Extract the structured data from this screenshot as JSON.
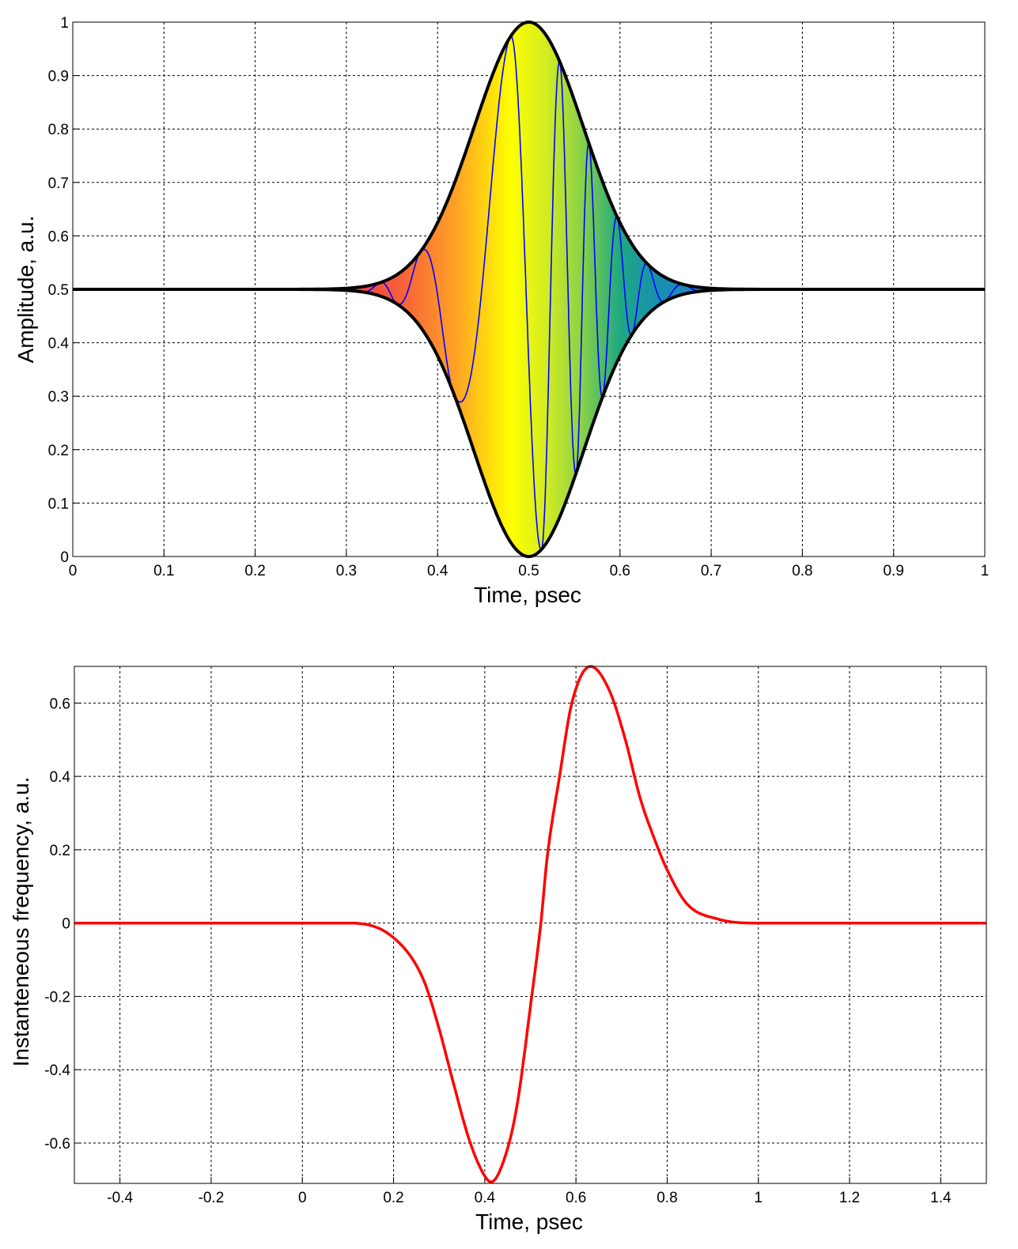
{
  "chart_data": [
    {
      "type": "area",
      "title": "",
      "xlabel": "Time, psec",
      "ylabel": "Amplitude, a.u.",
      "xlim": [
        0,
        1
      ],
      "ylim": [
        0,
        1
      ],
      "grid": true,
      "xticks": [
        "0",
        "0.1",
        "0.2",
        "0.3",
        "0.4",
        "0.5",
        "0.6",
        "0.7",
        "0.8",
        "0.9",
        "1"
      ],
      "yticks": [
        "0",
        "0.1",
        "0.2",
        "0.3",
        "0.4",
        "0.5",
        "0.6",
        "0.7",
        "0.8",
        "0.9",
        "1"
      ],
      "envelope": {
        "center": 0.5,
        "offset": 0.5,
        "amplitude": 0.5,
        "sigma": 0.06,
        "color": "#000000"
      },
      "carrier": {
        "color": "#0000ff",
        "extrema_t": [
          0.337,
          0.355,
          0.381,
          0.417,
          0.48,
          0.514,
          0.534,
          0.552,
          0.566,
          0.581,
          0.597,
          0.613,
          0.63,
          0.649,
          0.67
        ],
        "half_period_edge": 0.02
      },
      "fill_gradient": [
        {
          "t": 0.3,
          "color": "#ee3c46"
        },
        {
          "t": 0.36,
          "color": "#f5603a"
        },
        {
          "t": 0.42,
          "color": "#ffa225"
        },
        {
          "t": 0.48,
          "color": "#ffff00"
        },
        {
          "t": 0.52,
          "color": "#d2ec22"
        },
        {
          "t": 0.56,
          "color": "#86d04a"
        },
        {
          "t": 0.6,
          "color": "#1ea882"
        },
        {
          "t": 0.64,
          "color": "#1890ae"
        },
        {
          "t": 0.7,
          "color": "#2a7cc4"
        }
      ]
    },
    {
      "type": "line",
      "title": "",
      "xlabel": "Time, psec",
      "ylabel": "Instanteneous frequency, a.u.",
      "xlim": [
        -0.5,
        1.5
      ],
      "ylim": [
        -0.71,
        0.7
      ],
      "grid": true,
      "xticks": [
        "-0.4",
        "-0.2",
        "0",
        "0.2",
        "0.4",
        "0.6",
        "0.8",
        "1",
        "1.2",
        "1.4"
      ],
      "yticks": [
        "-0.6",
        "-0.4",
        "-0.2",
        "0",
        "0.2",
        "0.4",
        "0.6"
      ],
      "series": [
        {
          "name": "instantaneous frequency",
          "color": "#ff0000",
          "x": [
            -0.5,
            0.0,
            0.104,
            0.2,
            0.264,
            0.298,
            0.332,
            0.367,
            0.4,
            0.414,
            0.441,
            0.469,
            0.503,
            0.523,
            0.537,
            0.564,
            0.591,
            0.632,
            0.673,
            0.707,
            0.741,
            0.775,
            0.8,
            0.843,
            0.911,
            1.0,
            1.5
          ],
          "y": [
            0,
            0,
            0,
            -0.04,
            -0.15,
            -0.28,
            -0.44,
            -0.595,
            -0.69,
            -0.706,
            -0.65,
            -0.51,
            -0.2,
            0,
            0.18,
            0.4,
            0.6,
            0.7,
            0.635,
            0.506,
            0.34,
            0.22,
            0.145,
            0.053,
            0.011,
            0,
            0
          ]
        }
      ]
    }
  ]
}
